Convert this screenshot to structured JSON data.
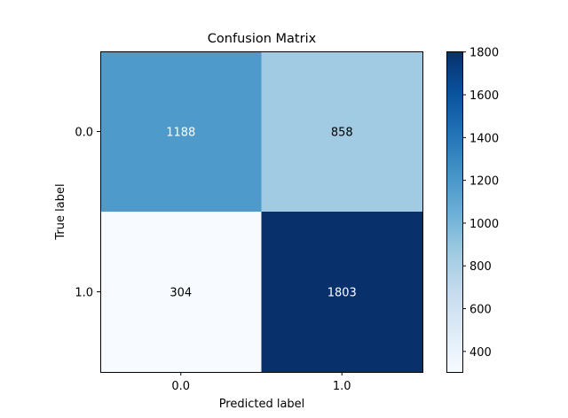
{
  "chart_data": {
    "type": "heatmap",
    "title": "Confusion Matrix",
    "xlabel": "Predicted label",
    "ylabel": "True label",
    "x_categories": [
      "0.0",
      "1.0"
    ],
    "y_categories": [
      "0.0",
      "1.0"
    ],
    "values": [
      [
        1188,
        858
      ],
      [
        304,
        1803
      ]
    ],
    "colormap": "Blues",
    "color_range": [
      304,
      1803
    ],
    "colorbar_ticks": [
      400,
      600,
      800,
      1000,
      1200,
      1400,
      1600,
      1800
    ],
    "colorbar_tick_labels": [
      "400",
      "600",
      "800",
      "1000",
      "1200",
      "1400",
      "1600",
      "1800"
    ],
    "colorbar_placement": "right",
    "grid": false
  }
}
